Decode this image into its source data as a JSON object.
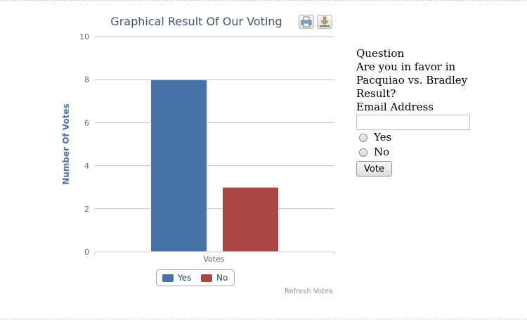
{
  "chart": {
    "export_print_icon": "printer-icon",
    "export_download_icon": "download-icon",
    "refresh_label": "Refresh Votes"
  },
  "chart_data": {
    "type": "bar",
    "title": "Graphical Result Of Our Voting",
    "xlabel": "",
    "ylabel": "Number Of Votes",
    "categories": [
      "Votes"
    ],
    "series": [
      {
        "name": "Yes",
        "values": [
          8
        ],
        "color": "#4572a7"
      },
      {
        "name": "No",
        "values": [
          3
        ],
        "color": "#aa4643"
      }
    ],
    "ylim": [
      0,
      10
    ],
    "yticks": [
      "0",
      "2",
      "4",
      "6",
      "8",
      "10"
    ],
    "grid": true,
    "legend": "bottom-center"
  },
  "form": {
    "question_heading": "Question",
    "question_text": "Are you in favor in Pacquiao vs. Bradley Result?",
    "email_label": "Email Address",
    "email_value": "",
    "options": [
      "Yes",
      "No"
    ],
    "submit_label": "Vote"
  }
}
